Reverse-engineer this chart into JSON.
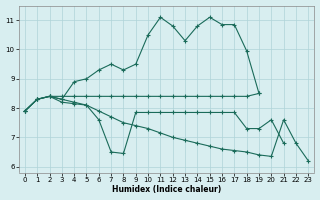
{
  "xlabel": "Humidex (Indice chaleur)",
  "background_color": "#d8eef0",
  "grid_color": "#afd4d8",
  "line_color": "#1a6b5a",
  "xlim": [
    -0.5,
    23.5
  ],
  "ylim": [
    5.8,
    11.5
  ],
  "yticks": [
    6,
    7,
    8,
    9,
    10,
    11
  ],
  "xticks": [
    0,
    1,
    2,
    3,
    4,
    5,
    6,
    7,
    8,
    9,
    10,
    11,
    12,
    13,
    14,
    15,
    16,
    17,
    18,
    19,
    20,
    21,
    22,
    23
  ],
  "line1_x": [
    0,
    1,
    2,
    3,
    4,
    5,
    6,
    7,
    8,
    9,
    10,
    11,
    12,
    13,
    14,
    15,
    16,
    17,
    18,
    19
  ],
  "line1_y": [
    7.9,
    8.3,
    8.4,
    8.3,
    8.9,
    9.0,
    9.3,
    9.5,
    9.3,
    9.5,
    10.5,
    11.1,
    10.8,
    10.3,
    10.8,
    11.1,
    10.85,
    10.85,
    9.95,
    8.5
  ],
  "line2_x": [
    0,
    1,
    2,
    3,
    4,
    5,
    6,
    7,
    8,
    9,
    10,
    11,
    12,
    13,
    14,
    15,
    16,
    17,
    18,
    19
  ],
  "line2_y": [
    7.9,
    8.3,
    8.4,
    8.4,
    8.4,
    8.4,
    8.4,
    8.4,
    8.4,
    8.4,
    8.4,
    8.4,
    8.4,
    8.4,
    8.4,
    8.4,
    8.4,
    8.4,
    8.4,
    8.5
  ],
  "line3_x": [
    0,
    1,
    2,
    3,
    4,
    5,
    6,
    7,
    8,
    9,
    10,
    11,
    12,
    13,
    14,
    15,
    16,
    17,
    18,
    19,
    20,
    21,
    22,
    23
  ],
  "line3_y": [
    7.9,
    8.3,
    8.4,
    8.3,
    8.2,
    8.1,
    7.9,
    7.7,
    7.5,
    7.4,
    7.3,
    7.15,
    7.0,
    6.9,
    6.8,
    6.7,
    6.6,
    6.55,
    6.5,
    6.4,
    6.35,
    7.6,
    6.8,
    6.2
  ],
  "line4_x": [
    0,
    1,
    2,
    3,
    4,
    5,
    6,
    7,
    8,
    9,
    10,
    11,
    12,
    13,
    14,
    15,
    16,
    17,
    18,
    19,
    20,
    21
  ],
  "line4_y": [
    7.9,
    8.3,
    8.4,
    8.2,
    8.15,
    8.1,
    7.6,
    6.5,
    6.45,
    7.85,
    7.85,
    7.85,
    7.85,
    7.85,
    7.85,
    7.85,
    7.85,
    7.85,
    7.3,
    7.3,
    7.6,
    6.8
  ]
}
